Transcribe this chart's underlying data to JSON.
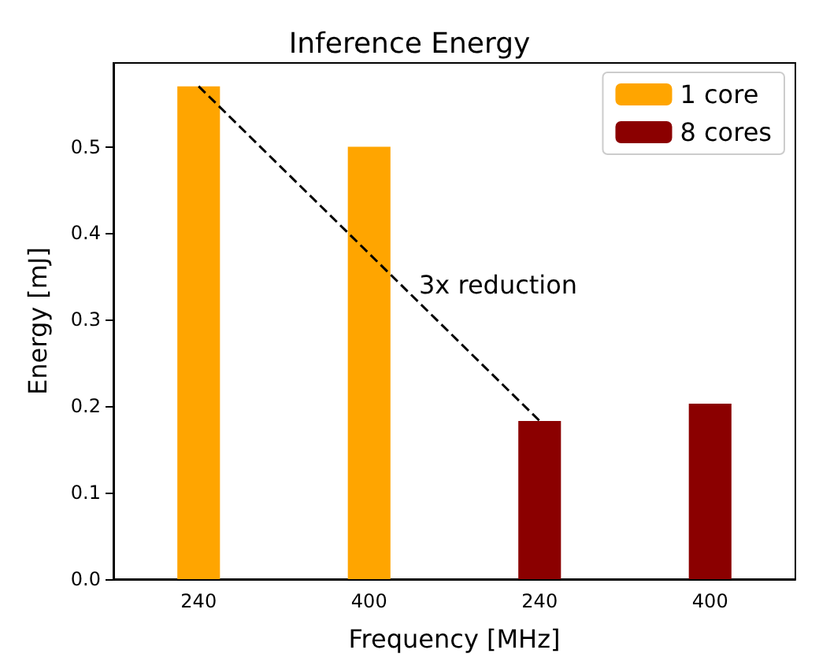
{
  "chart_data": {
    "type": "bar",
    "title": "Inference Energy",
    "xlabel": "Frequency [MHz]",
    "ylabel": "Energy [mJ]",
    "categories": [
      "240",
      "400",
      "240",
      "400"
    ],
    "series": [
      {
        "name": "1 core",
        "color": "#ffa500",
        "values": [
          0.57,
          0.5,
          null,
          null
        ]
      },
      {
        "name": "8 cores",
        "color": "#8b0000",
        "values": [
          null,
          null,
          0.183,
          0.203
        ]
      },
      {
        "type": "line",
        "color": "#000000",
        "line_style": "dashed",
        "marker": "none",
        "values": [
          0.57,
          null,
          0.183,
          null
        ]
      }
    ],
    "ylim": [
      0,
      0.597
    ],
    "yticks": [
      {
        "value": 0,
        "label": "0.0"
      },
      {
        "value": 0.1,
        "label": "0.1"
      },
      {
        "value": 0.2,
        "label": "0.2"
      },
      {
        "value": 0.3,
        "label": "0.3"
      },
      {
        "value": 0.4,
        "label": "0.4"
      },
      {
        "value": 0.5,
        "label": "0.5"
      }
    ],
    "annotations": [
      "3x reduction"
    ],
    "grid": false,
    "legend": "top right"
  }
}
